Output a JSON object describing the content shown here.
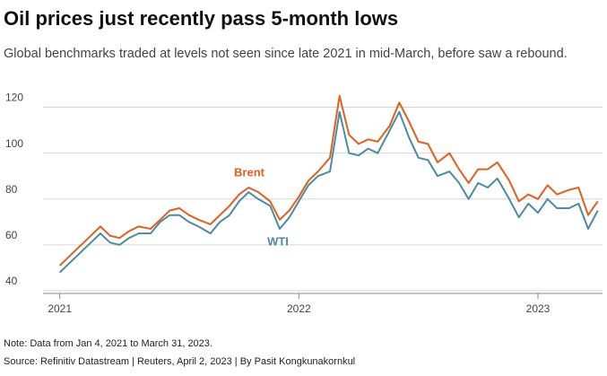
{
  "chart_data": {
    "type": "line",
    "title": "Oil prices just recently pass 5-month lows",
    "subtitle": "Global benchmarks traded at levels not seen since late 2021 in mid-March, before saw a rebound.",
    "note": "Note: Data from Jan 4, 2021 to March 31, 2023.",
    "source": "Source: Refinitiv Datastream | Reuters, April 2, 2023 | By Pasit Kongkunakornkul",
    "x": [
      2021.0,
      2021.04,
      2021.08,
      2021.13,
      2021.17,
      2021.21,
      2021.25,
      2021.29,
      2021.33,
      2021.38,
      2021.42,
      2021.46,
      2021.5,
      2021.54,
      2021.58,
      2021.63,
      2021.67,
      2021.71,
      2021.75,
      2021.79,
      2021.83,
      2021.88,
      2021.92,
      2021.96,
      2022.0,
      2022.04,
      2022.08,
      2022.13,
      2022.17,
      2022.21,
      2022.25,
      2022.29,
      2022.33,
      2022.38,
      2022.42,
      2022.46,
      2022.5,
      2022.54,
      2022.58,
      2022.63,
      2022.67,
      2022.71,
      2022.75,
      2022.79,
      2022.83,
      2022.88,
      2022.92,
      2022.96,
      2023.0,
      2023.04,
      2023.08,
      2023.13,
      2023.17,
      2023.21,
      2023.25
    ],
    "series": [
      {
        "name": "Brent",
        "color": "#e35f1c",
        "values": [
          51,
          55,
          59,
          64,
          68,
          64,
          63,
          66,
          68,
          67,
          71,
          75,
          76,
          73,
          71,
          69,
          73,
          77,
          82,
          85,
          83,
          79,
          71,
          75,
          81,
          88,
          92,
          98,
          125,
          108,
          104,
          106,
          105,
          112,
          122,
          114,
          105,
          104,
          96,
          100,
          93,
          87,
          93,
          93,
          96,
          88,
          79,
          82,
          80,
          86,
          82,
          84,
          85,
          73,
          79
        ]
      },
      {
        "name": "WTI",
        "color": "#4a8ca6",
        "values": [
          48,
          52,
          56,
          61,
          65,
          61,
          60,
          63,
          65,
          65,
          70,
          73,
          73,
          70,
          68,
          65,
          70,
          73,
          79,
          83,
          80,
          77,
          67,
          72,
          79,
          86,
          90,
          92,
          118,
          100,
          99,
          102,
          100,
          110,
          118,
          107,
          98,
          97,
          90,
          92,
          87,
          80,
          87,
          85,
          89,
          80,
          72,
          78,
          74,
          80,
          76,
          76,
          78,
          67,
          75
        ]
      }
    ],
    "xlim": [
      2020.93,
      2023.27
    ],
    "xticks": [
      2021,
      2022,
      2023
    ],
    "ylim": [
      40,
      130
    ],
    "yticks": [
      40,
      60,
      80,
      100,
      120
    ],
    "grid": true
  }
}
